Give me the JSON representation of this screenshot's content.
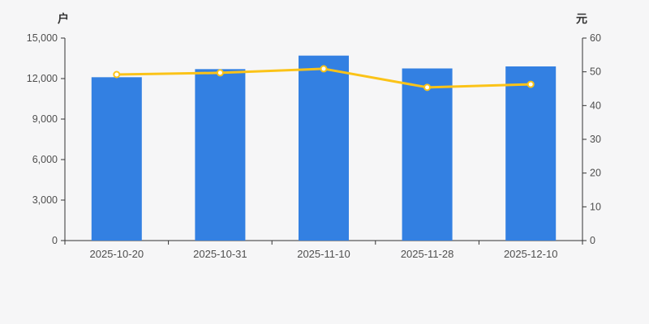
{
  "chart_data": {
    "type": "bar",
    "subtype": "bar+line dual-axis",
    "categories": [
      "2025-10-20",
      "2025-10-31",
      "2025-11-10",
      "2025-11-28",
      "2025-12-10"
    ],
    "series": [
      {
        "name": "bar-series",
        "type": "bar",
        "axis": "left",
        "color": "#3380E2",
        "values": [
          12100,
          12700,
          13700,
          12750,
          12900
        ]
      },
      {
        "name": "line-series",
        "type": "line",
        "axis": "right",
        "color": "#FBC318",
        "marker": "hollow-circle",
        "values": [
          49.2,
          49.7,
          50.9,
          45.4,
          46.3
        ]
      }
    ],
    "left_axis": {
      "title": "户",
      "min": 0,
      "max": 15000,
      "tick_step": 3000,
      "tick_labels": [
        "0",
        "3,000",
        "6,000",
        "9,000",
        "12,000",
        "15,000"
      ]
    },
    "right_axis": {
      "title": "元",
      "min": 0,
      "max": 60,
      "tick_step": 10,
      "tick_labels": [
        "0",
        "10",
        "20",
        "30",
        "40",
        "50",
        "60"
      ]
    },
    "grid": false,
    "legend": "none",
    "background": "#F6F6F7",
    "axis_line_color": "#333333",
    "tick_label_color": "#4E4E4E"
  }
}
